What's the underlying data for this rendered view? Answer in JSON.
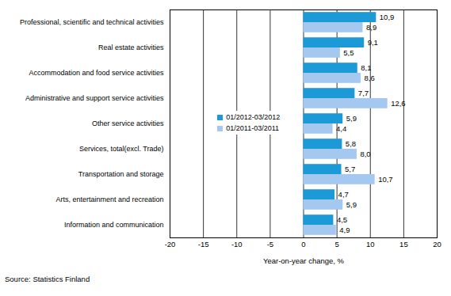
{
  "chart_data": {
    "type": "bar",
    "orientation": "horizontal",
    "categories": [
      "Professional, scientific and technical activities",
      "Real estate activities",
      "Accommodation and food service activities",
      "Administrative and support service activities",
      "Other service activities",
      "Services, total(excl. Trade)",
      "Transportation and storage",
      "Arts, entertainment and recreation",
      "Information and communication"
    ],
    "series": [
      {
        "name": "01/2012-03/2012",
        "color": "#1b9ad7",
        "values": [
          10.9,
          9.1,
          8.1,
          7.7,
          5.9,
          5.8,
          5.7,
          4.7,
          4.5
        ],
        "value_labels": [
          "10,9",
          "9,1",
          "8,1",
          "7,7",
          "5,9",
          "5,8",
          "5,7",
          "4,7",
          "4,5"
        ]
      },
      {
        "name": "01/2011-03/2011",
        "color": "#a4c8f0",
        "values": [
          8.9,
          5.5,
          8.6,
          12.6,
          4.4,
          8.0,
          10.7,
          5.9,
          4.9
        ],
        "value_labels": [
          "8,9",
          "5,5",
          "8,6",
          "12,6",
          "4,4",
          "8,0",
          "10,7",
          "5,9",
          "4,9"
        ]
      }
    ],
    "xlabel": "Year-on-year change, %",
    "xlim": [
      -20,
      20
    ],
    "xticks": [
      -20,
      -15,
      -10,
      -5,
      0,
      5,
      10,
      15,
      20
    ],
    "grid": true,
    "legend": "left",
    "data_labels": true,
    "caption": "Source: Statistics Finland"
  }
}
